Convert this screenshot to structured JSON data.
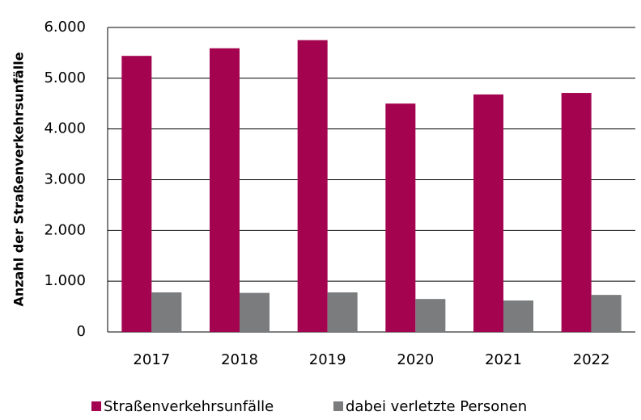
{
  "chart_data": {
    "type": "bar",
    "ylabel": "Anzahl der Straßenverkehrsunfälle",
    "categories": [
      "2017",
      "2018",
      "2019",
      "2020",
      "2021",
      "2022"
    ],
    "series": [
      {
        "name": "Straßenverkehrsunfälle",
        "color": "#a4044f",
        "values": [
          5440,
          5590,
          5750,
          4500,
          4680,
          4710
        ]
      },
      {
        "name": "dabei verletzte Personen",
        "color": "#7a7c7e",
        "values": [
          780,
          770,
          780,
          650,
          620,
          730
        ]
      }
    ],
    "ylim": [
      0,
      6000
    ],
    "yticks": [
      0,
      {
        "value": 1000,
        "label": "1.000"
      },
      {
        "value": 2000,
        "label": "2.000"
      },
      {
        "value": 3000,
        "label": "3.000"
      },
      {
        "value": 4000,
        "label": "4.000"
      },
      {
        "value": 5000,
        "label": "5.000"
      },
      {
        "value": 6000,
        "label": "6.000"
      }
    ],
    "grid": true
  }
}
